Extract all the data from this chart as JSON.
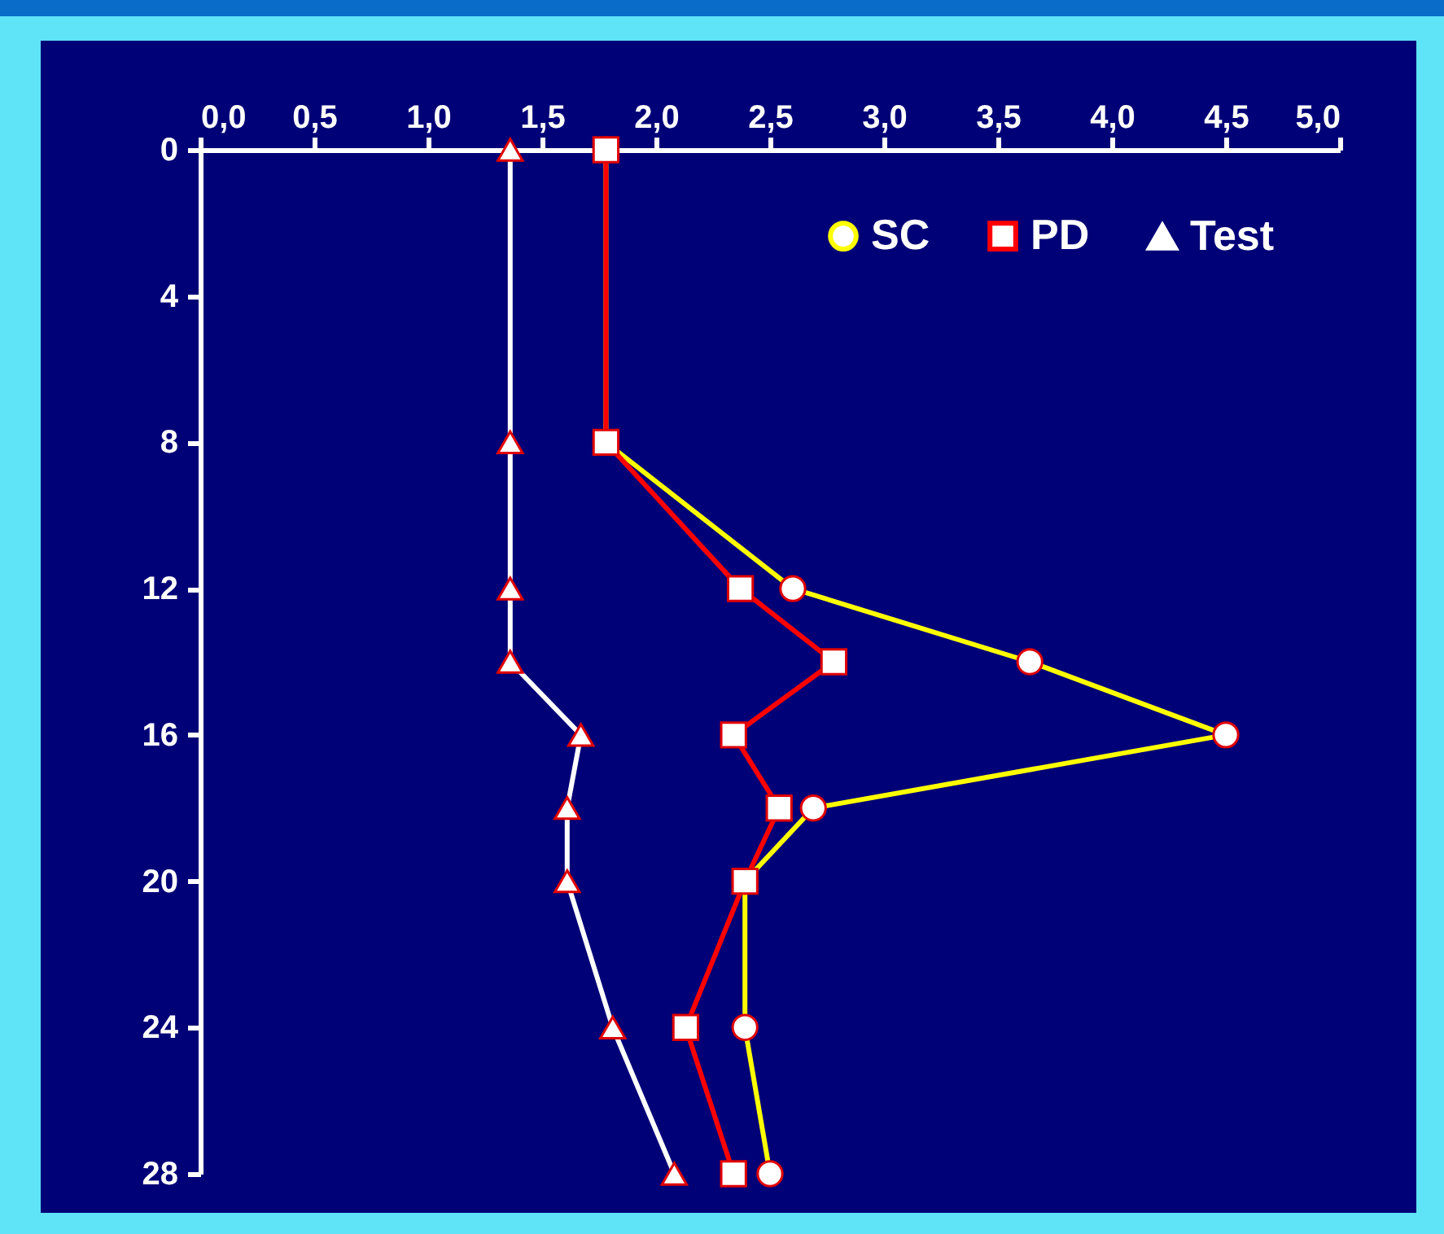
{
  "chart_data": {
    "type": "line",
    "xlim": [
      0,
      5
    ],
    "xticks": [
      {
        "value": 0,
        "label": "0,0"
      },
      {
        "value": 0.5,
        "label": "0,5"
      },
      {
        "value": 1,
        "label": "1,0"
      },
      {
        "value": 1.5,
        "label": "1,5"
      },
      {
        "value": 2,
        "label": "2,0"
      },
      {
        "value": 2.5,
        "label": "2,5"
      },
      {
        "value": 3,
        "label": "3,0"
      },
      {
        "value": 3.5,
        "label": "3,5"
      },
      {
        "value": 4,
        "label": "4,0"
      },
      {
        "value": 4.5,
        "label": "4,5"
      },
      {
        "value": 5,
        "label": "5,0"
      }
    ],
    "ylim": [
      28,
      0
    ],
    "yticks": [
      0,
      4,
      8,
      12,
      16,
      20,
      24,
      28
    ],
    "grid": false,
    "legend": "top right",
    "series": [
      {
        "name": "SC",
        "color": "#ffff00",
        "marker": "circle",
        "x": [
          1.78,
          1.78,
          2.6,
          3.64,
          4.5,
          2.69,
          2.39,
          2.39,
          2.5
        ],
        "values": [
          0,
          8,
          12,
          14,
          16,
          18,
          20,
          24,
          28
        ]
      },
      {
        "name": "PD",
        "color": "#ff0000",
        "marker": "square",
        "x": [
          1.78,
          1.78,
          2.37,
          2.78,
          2.34,
          2.54,
          2.39,
          2.13,
          2.34
        ],
        "values": [
          0,
          8,
          12,
          14,
          16,
          18,
          20,
          24,
          28
        ]
      },
      {
        "name": "Test",
        "color": "#ffffff",
        "marker": "triangle",
        "x": [
          1.36,
          1.36,
          1.36,
          1.36,
          1.67,
          1.61,
          1.61,
          1.81,
          2.08
        ],
        "values": [
          0,
          8,
          12,
          14,
          16,
          18,
          20,
          24,
          28
        ]
      }
    ]
  }
}
